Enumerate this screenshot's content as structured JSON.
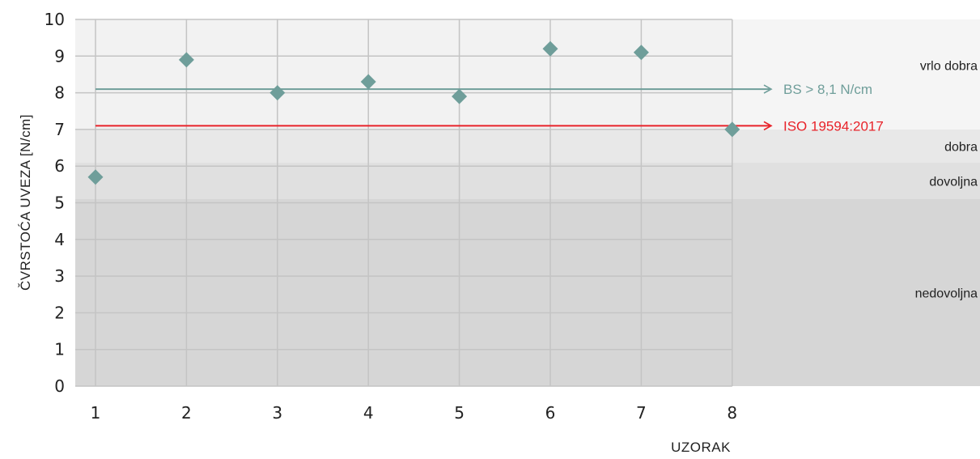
{
  "chart_data": {
    "type": "scatter",
    "title": "",
    "xlabel": "UZORAK",
    "ylabel": "ČVRSTOĆA UVEZA [N/cm]",
    "x": [
      1,
      2,
      3,
      4,
      5,
      6,
      7,
      8
    ],
    "xlim": [
      1,
      8
    ],
    "ylim": [
      0,
      10
    ],
    "yticks": [
      0,
      1,
      2,
      3,
      4,
      5,
      6,
      7,
      8,
      9,
      10
    ],
    "grid": true,
    "series": [
      {
        "values": [
          5.7,
          8.9,
          8.0,
          8.3,
          7.9,
          9.2,
          9.1,
          7.0
        ],
        "color": "#6f9e9a",
        "marker": "diamond"
      }
    ],
    "reference_lines": [
      {
        "label": "BS > 8,1 N/cm",
        "value": 8.1,
        "color": "#6f9e9a"
      },
      {
        "label": "ISO 19594:2017",
        "value": 7.1,
        "color": "#e8232a"
      }
    ],
    "zones": [
      {
        "label": "vrlo dobra",
        "from": 7.0,
        "to": 10.0,
        "color": "#f2f2f2"
      },
      {
        "label": "dobra",
        "from": 6.1,
        "to": 7.0,
        "color": "#e8e8e8"
      },
      {
        "label": "dovoljna",
        "from": 5.1,
        "to": 6.1,
        "color": "#e0e0e0"
      },
      {
        "label": "nedovoljna",
        "from": 0.0,
        "to": 5.1,
        "color": "#d6d6d6"
      }
    ]
  }
}
